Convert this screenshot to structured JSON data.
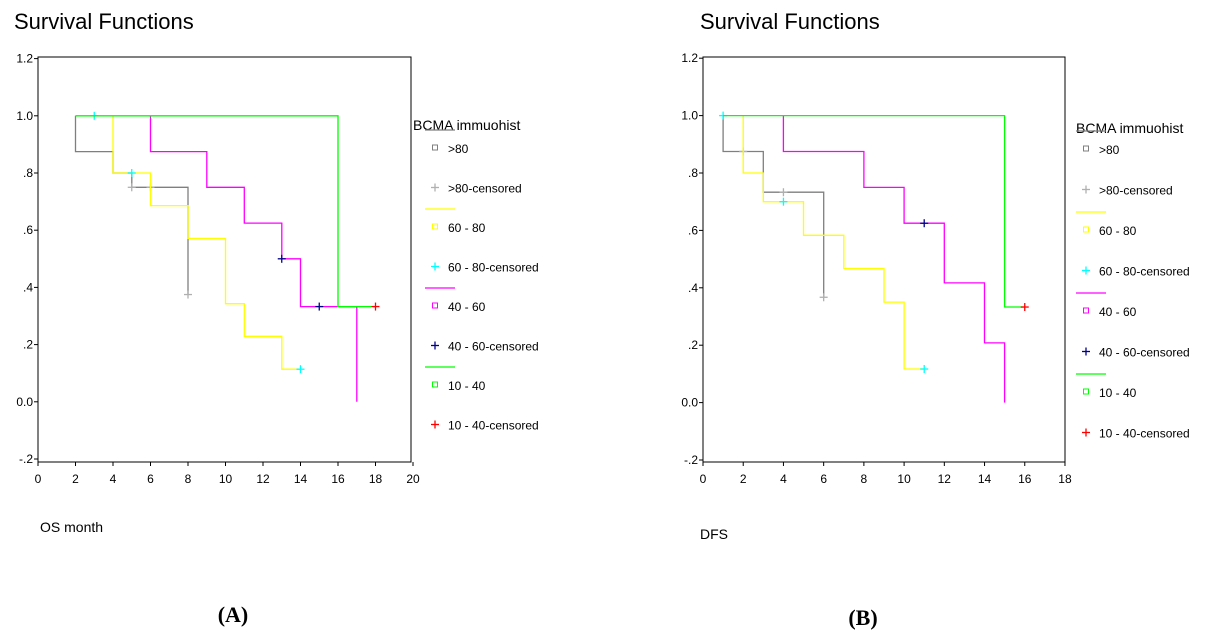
{
  "panels": [
    {
      "title": "Survival Functions",
      "xlabel": "OS month",
      "panel_label": "(A)",
      "legend_title": "BCMA immuohist",
      "legend": [
        ">80",
        ">80-censored",
        "60 - 80",
        "60 - 80-censored",
        "40 - 60",
        "40 - 60-censored",
        "10 - 40",
        "10 - 40-censored"
      ]
    },
    {
      "title": "Survival Functions",
      "xlabel": "DFS",
      "panel_label": "(B)",
      "legend_title": "BCMA immuohist",
      "legend": [
        ">80",
        ">80-censored",
        "60 - 80",
        "60 - 80-censored",
        "40 - 60",
        "40 - 60-censored",
        "10 - 40",
        "10 - 40-censored"
      ]
    }
  ],
  "chart_data": [
    {
      "type": "line",
      "title": "Survival Functions",
      "xlabel": "OS month",
      "ylabel": "",
      "xlim": [
        0,
        20
      ],
      "ylim": [
        -0.2,
        1.2
      ],
      "x_ticks": [
        "0",
        "2",
        "4",
        "6",
        "8",
        "10",
        "12",
        "14",
        "16",
        "18",
        "20"
      ],
      "y_ticks": [
        "-.2",
        "0.0",
        ".2",
        ".4",
        ".6",
        ".8",
        "1.0",
        "1.2"
      ],
      "grid": false,
      "legend_position": "right",
      "series": [
        {
          "name": ">80",
          "color": "#7f7f7f",
          "type": "step",
          "points": [
            [
              2,
              1.0
            ],
            [
              2,
              0.875
            ],
            [
              4,
              0.875
            ],
            [
              4,
              0.8
            ],
            [
              5,
              0.8
            ],
            [
              5,
              0.75
            ],
            [
              8,
              0.75
            ],
            [
              8,
              0.375
            ]
          ],
          "censored": [
            [
              5,
              0.75
            ],
            [
              6,
              0.75
            ],
            [
              8,
              0.375
            ]
          ],
          "censor_color": "#b0b0b0"
        },
        {
          "name": "60 - 80",
          "color": "#ffff00",
          "type": "step",
          "points": [
            [
              4,
              1.0
            ],
            [
              4,
              0.8
            ],
            [
              6,
              0.8
            ],
            [
              6,
              0.686
            ],
            [
              8,
              0.686
            ],
            [
              8,
              0.571
            ],
            [
              10,
              0.571
            ],
            [
              10,
              0.343
            ],
            [
              11,
              0.343
            ],
            [
              11,
              0.229
            ],
            [
              13,
              0.229
            ],
            [
              13,
              0.114
            ],
            [
              14,
              0.114
            ]
          ],
          "censored": [
            [
              3,
              1.0
            ],
            [
              5,
              0.8
            ],
            [
              14,
              0.114
            ]
          ],
          "censor_color": "#00ffff"
        },
        {
          "name": "40 - 60",
          "color": "#ff00ff",
          "type": "step",
          "points": [
            [
              6,
              1.0
            ],
            [
              6,
              0.875
            ],
            [
              9,
              0.875
            ],
            [
              9,
              0.75
            ],
            [
              11,
              0.75
            ],
            [
              11,
              0.625
            ],
            [
              13,
              0.625
            ],
            [
              13,
              0.5
            ],
            [
              14,
              0.5
            ],
            [
              14,
              0.333
            ],
            [
              17,
              0.333
            ],
            [
              17,
              0.0
            ]
          ],
          "censored": [
            [
              13,
              0.5
            ],
            [
              15,
              0.333
            ]
          ],
          "censor_color": "#00008b"
        },
        {
          "name": "10 - 40",
          "color": "#00ff00",
          "type": "step",
          "points": [
            [
              2,
              1.0
            ],
            [
              16,
              1.0
            ],
            [
              16,
              0.333
            ],
            [
              18,
              0.333
            ]
          ],
          "censored": [
            [
              18,
              0.333
            ]
          ],
          "censor_color": "#ff0000"
        }
      ]
    },
    {
      "type": "line",
      "title": "Survival Functions",
      "xlabel": "DFS",
      "ylabel": "",
      "xlim": [
        0,
        18
      ],
      "ylim": [
        -0.2,
        1.2
      ],
      "x_ticks": [
        "0",
        "2",
        "4",
        "6",
        "8",
        "10",
        "12",
        "14",
        "16",
        "18"
      ],
      "y_ticks": [
        "-.2",
        "0.0",
        ".2",
        ".4",
        ".6",
        ".8",
        "1.0",
        "1.2"
      ],
      "grid": false,
      "legend_position": "right",
      "series": [
        {
          "name": ">80",
          "color": "#7f7f7f",
          "type": "step",
          "points": [
            [
              1,
              1.0
            ],
            [
              1,
              0.875
            ],
            [
              3,
              0.875
            ],
            [
              3,
              0.733
            ],
            [
              6,
              0.733
            ],
            [
              6,
              0.367
            ]
          ],
          "censored": [
            [
              2,
              0.875
            ],
            [
              4,
              0.733
            ],
            [
              6,
              0.367
            ]
          ],
          "censor_color": "#b0b0b0"
        },
        {
          "name": "60 - 80",
          "color": "#ffff00",
          "type": "step",
          "points": [
            [
              2,
              1.0
            ],
            [
              2,
              0.8
            ],
            [
              3,
              0.8
            ],
            [
              3,
              0.7
            ],
            [
              5,
              0.7
            ],
            [
              5,
              0.583
            ],
            [
              7,
              0.583
            ],
            [
              7,
              0.467
            ],
            [
              9,
              0.467
            ],
            [
              9,
              0.35
            ],
            [
              10,
              0.35
            ],
            [
              10,
              0.117
            ],
            [
              11,
              0.117
            ]
          ],
          "censored": [
            [
              1,
              1.0
            ],
            [
              4,
              0.7
            ],
            [
              11,
              0.117
            ]
          ],
          "censor_color": "#00ffff"
        },
        {
          "name": "40 - 60",
          "color": "#ff00ff",
          "type": "step",
          "points": [
            [
              4,
              1.0
            ],
            [
              4,
              0.875
            ],
            [
              8,
              0.875
            ],
            [
              8,
              0.75
            ],
            [
              10,
              0.75
            ],
            [
              10,
              0.625
            ],
            [
              12,
              0.625
            ],
            [
              12,
              0.417
            ],
            [
              14,
              0.417
            ],
            [
              14,
              0.208
            ],
            [
              15,
              0.208
            ],
            [
              15,
              0.0
            ]
          ],
          "censored": [
            [
              11,
              0.625
            ]
          ],
          "censor_color": "#00008b"
        },
        {
          "name": "10 - 40",
          "color": "#00ff00",
          "type": "step",
          "points": [
            [
              1,
              1.0
            ],
            [
              15,
              1.0
            ],
            [
              15,
              0.333
            ],
            [
              16,
              0.333
            ]
          ],
          "censored": [
            [
              16,
              0.333
            ]
          ],
          "censor_color": "#ff0000"
        }
      ]
    }
  ]
}
